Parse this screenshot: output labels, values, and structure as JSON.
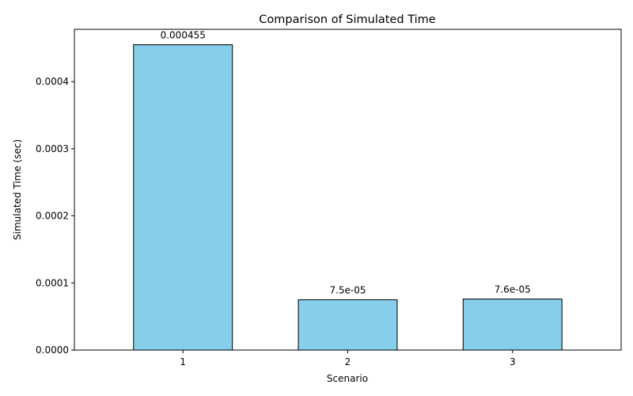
{
  "chart_data": {
    "type": "bar",
    "title": "Comparison of Simulated Time",
    "xlabel": "Scenario",
    "ylabel": "Simulated Time (sec)",
    "categories": [
      "1",
      "2",
      "3"
    ],
    "values": [
      0.000455,
      7.5e-05,
      7.6e-05
    ],
    "value_labels": [
      "0.000455",
      "7.5e-05",
      "7.6e-05"
    ],
    "ylim": [
      0,
      0.000478
    ],
    "yticks": [
      0,
      0.0001,
      0.0002,
      0.0003,
      0.0004
    ],
    "ytick_labels": [
      "0.0000",
      "0.0001",
      "0.0002",
      "0.0003",
      "0.0004"
    ],
    "bar_color": "#87ceeb",
    "edge_color": "#000000",
    "grid": false,
    "legend": "none"
  }
}
